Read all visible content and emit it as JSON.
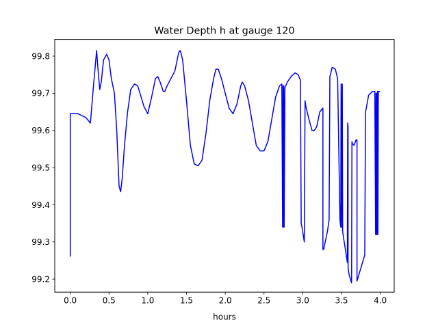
{
  "chart_data": {
    "type": "line",
    "title": "Water Depth h at gauge 120",
    "xlabel": "hours",
    "ylabel": "",
    "xlim": [
      -0.2,
      4.18
    ],
    "ylim": [
      99.165,
      99.845
    ],
    "x_ticks": [
      0.0,
      0.5,
      1.0,
      1.5,
      2.0,
      2.5,
      3.0,
      3.5,
      4.0
    ],
    "x_tick_labels": [
      "0.0",
      "0.5",
      "1.0",
      "1.5",
      "2.0",
      "2.5",
      "3.0",
      "3.5",
      "4.0"
    ],
    "y_ticks": [
      99.2,
      99.3,
      99.4,
      99.5,
      99.6,
      99.7,
      99.8
    ],
    "y_tick_labels": [
      "99.2",
      "99.3",
      "99.4",
      "99.5",
      "99.6",
      "99.7",
      "99.8"
    ],
    "grid": false,
    "legend": "none",
    "series": [
      {
        "color": "#0000ff",
        "x": [
          0.0,
          0.0,
          0.1,
          0.2,
          0.26,
          0.3,
          0.34,
          0.36,
          0.38,
          0.4,
          0.43,
          0.47,
          0.5,
          0.53,
          0.57,
          0.6,
          0.63,
          0.65,
          0.67,
          0.7,
          0.74,
          0.78,
          0.83,
          0.87,
          0.9,
          0.95,
          1.0,
          1.05,
          1.1,
          1.13,
          1.16,
          1.2,
          1.22,
          1.25,
          1.3,
          1.35,
          1.4,
          1.42,
          1.45,
          1.5,
          1.55,
          1.6,
          1.65,
          1.7,
          1.75,
          1.8,
          1.85,
          1.88,
          1.91,
          1.95,
          2.0,
          2.05,
          2.1,
          2.15,
          2.2,
          2.22,
          2.25,
          2.3,
          2.35,
          2.4,
          2.45,
          2.5,
          2.55,
          2.6,
          2.65,
          2.7,
          2.73,
          2.74,
          2.745,
          2.75,
          2.755,
          2.76,
          2.77,
          2.8,
          2.85,
          2.9,
          2.94,
          2.97,
          2.98,
          2.99,
          3.02,
          3.03,
          3.04,
          3.08,
          3.12,
          3.15,
          3.18,
          3.22,
          3.26,
          3.26,
          3.27,
          3.32,
          3.34,
          3.35,
          3.38,
          3.42,
          3.45,
          3.48,
          3.49,
          3.495,
          3.5,
          3.51,
          3.515,
          3.52,
          3.52,
          3.55,
          3.575,
          3.58,
          3.585,
          3.585,
          3.6,
          3.63,
          3.635,
          3.64,
          3.66,
          3.69,
          3.7,
          3.7,
          3.75,
          3.8,
          3.81,
          3.82,
          3.85,
          3.9,
          3.93,
          3.94,
          3.945,
          3.95,
          3.955,
          3.96,
          3.965,
          3.97,
          3.975,
          3.98,
          3.99
        ],
        "y": [
          99.262,
          99.645,
          99.645,
          99.635,
          99.62,
          99.72,
          99.815,
          99.76,
          99.71,
          99.73,
          99.79,
          99.805,
          99.79,
          99.74,
          99.7,
          99.6,
          99.45,
          99.435,
          99.47,
          99.56,
          99.65,
          99.71,
          99.725,
          99.72,
          99.7,
          99.665,
          99.645,
          99.69,
          99.74,
          99.745,
          99.73,
          99.705,
          99.705,
          99.72,
          99.74,
          99.76,
          99.81,
          99.815,
          99.79,
          99.68,
          99.56,
          99.51,
          99.505,
          99.52,
          99.59,
          99.68,
          99.74,
          99.765,
          99.765,
          99.74,
          99.7,
          99.66,
          99.645,
          99.67,
          99.72,
          99.73,
          99.72,
          99.68,
          99.62,
          99.56,
          99.545,
          99.545,
          99.57,
          99.63,
          99.69,
          99.72,
          99.725,
          99.34,
          99.72,
          99.34,
          99.72,
          99.34,
          99.715,
          99.73,
          99.745,
          99.755,
          99.75,
          99.735,
          99.35,
          99.34,
          99.3,
          99.68,
          99.665,
          99.63,
          99.6,
          99.6,
          99.61,
          99.65,
          99.66,
          99.28,
          99.28,
          99.33,
          99.36,
          99.745,
          99.77,
          99.765,
          99.74,
          99.36,
          99.34,
          99.725,
          99.34,
          99.725,
          99.33,
          99.32,
          99.32,
          99.28,
          99.245,
          99.62,
          99.61,
          99.23,
          99.21,
          99.19,
          99.57,
          99.565,
          99.56,
          99.575,
          99.575,
          99.195,
          99.23,
          99.265,
          99.65,
          99.66,
          99.695,
          99.705,
          99.705,
          99.32,
          99.7,
          99.32,
          99.7,
          99.32,
          99.705,
          99.32,
          99.705,
          99.705,
          99.705
        ]
      }
    ]
  }
}
